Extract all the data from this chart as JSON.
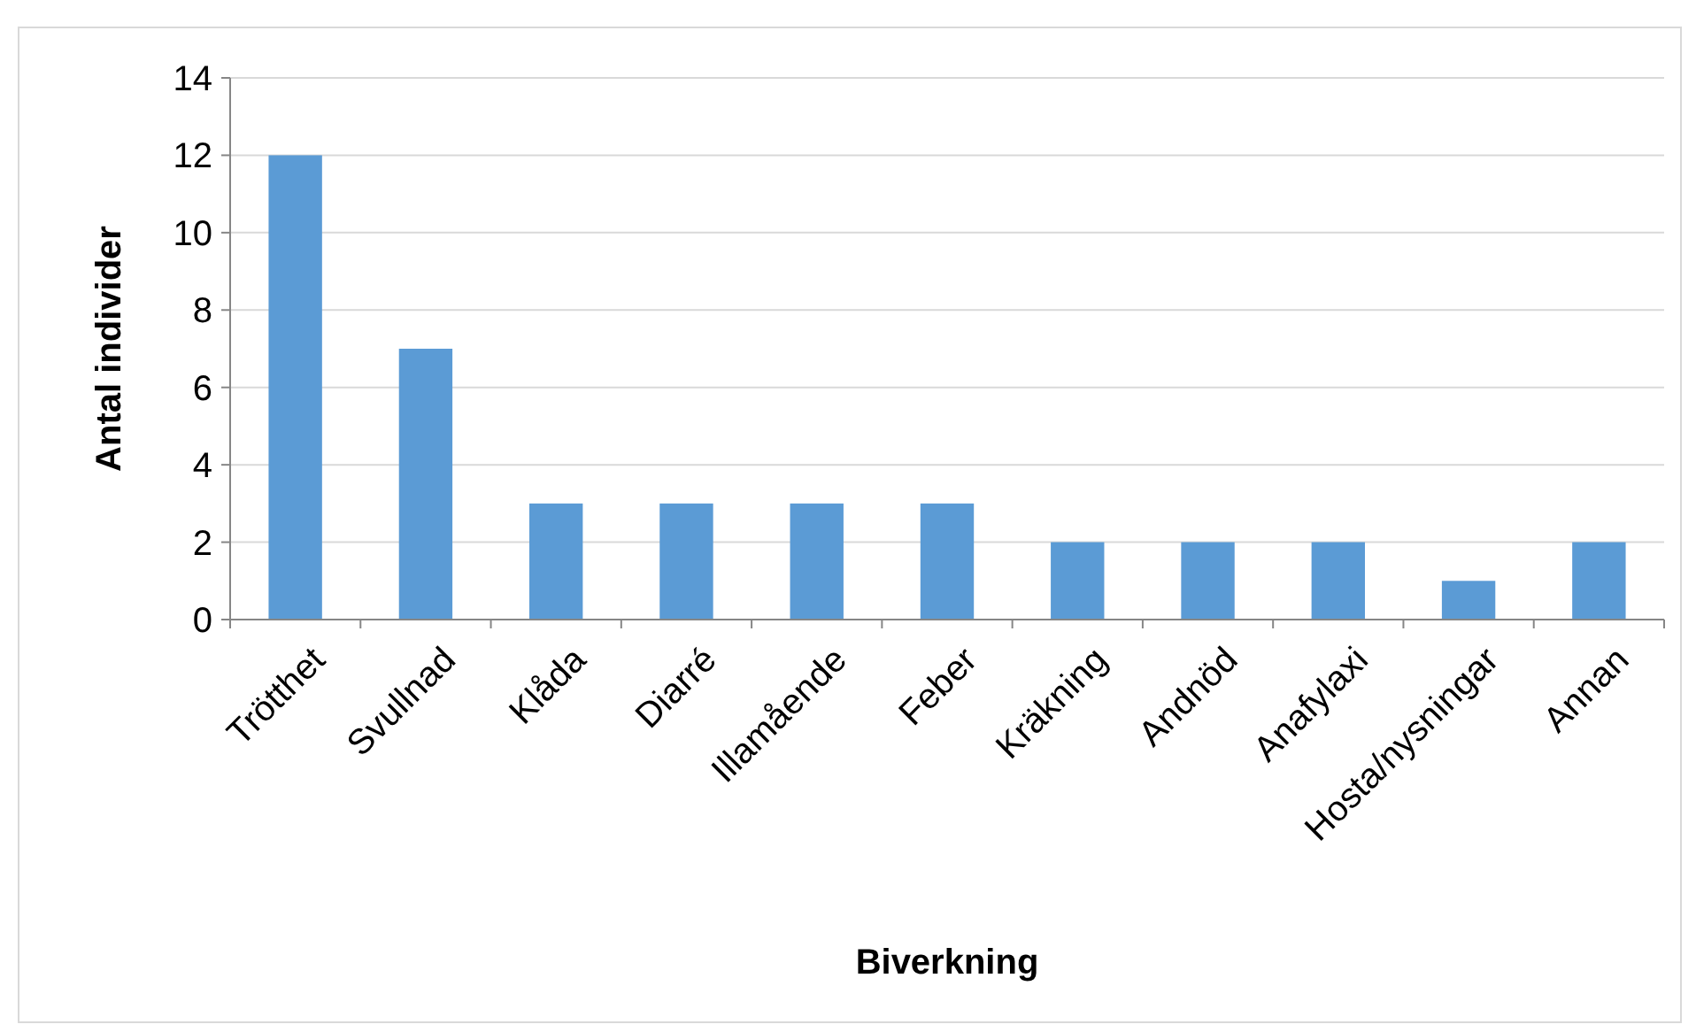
{
  "chart_data": {
    "type": "bar",
    "xlabel": "Biverkning",
    "ylabel": "Antal individer",
    "categories": [
      "Trötthet",
      "Svullnad",
      "Klåda",
      "Diarré",
      "Illamående",
      "Feber",
      "Kräkning",
      "Andnöd",
      "Anafylaxi",
      "Hosta/nysningar",
      "Annan"
    ],
    "values": [
      12,
      7,
      3,
      3,
      3,
      3,
      2,
      2,
      2,
      1,
      2
    ],
    "color": "#5b9bd5",
    "ylim": [
      0,
      14
    ],
    "yticks": [
      0,
      2,
      4,
      6,
      8,
      10,
      12,
      14
    ],
    "grid": "y"
  }
}
